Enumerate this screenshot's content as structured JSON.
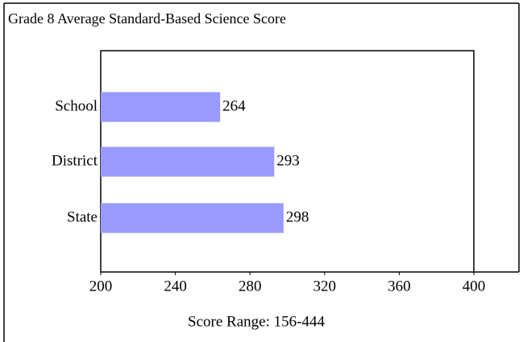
{
  "chart_data": {
    "type": "hbar",
    "title": "Grade 8 Average Standard-Based Science Score",
    "categories": [
      "School",
      "District",
      "State"
    ],
    "values": [
      264,
      293,
      298
    ],
    "color": "#9999ff",
    "xlim": [
      200,
      400
    ],
    "xticks": [
      200,
      240,
      280,
      320,
      360,
      400
    ],
    "x_label": "Score Range: 156-444"
  }
}
